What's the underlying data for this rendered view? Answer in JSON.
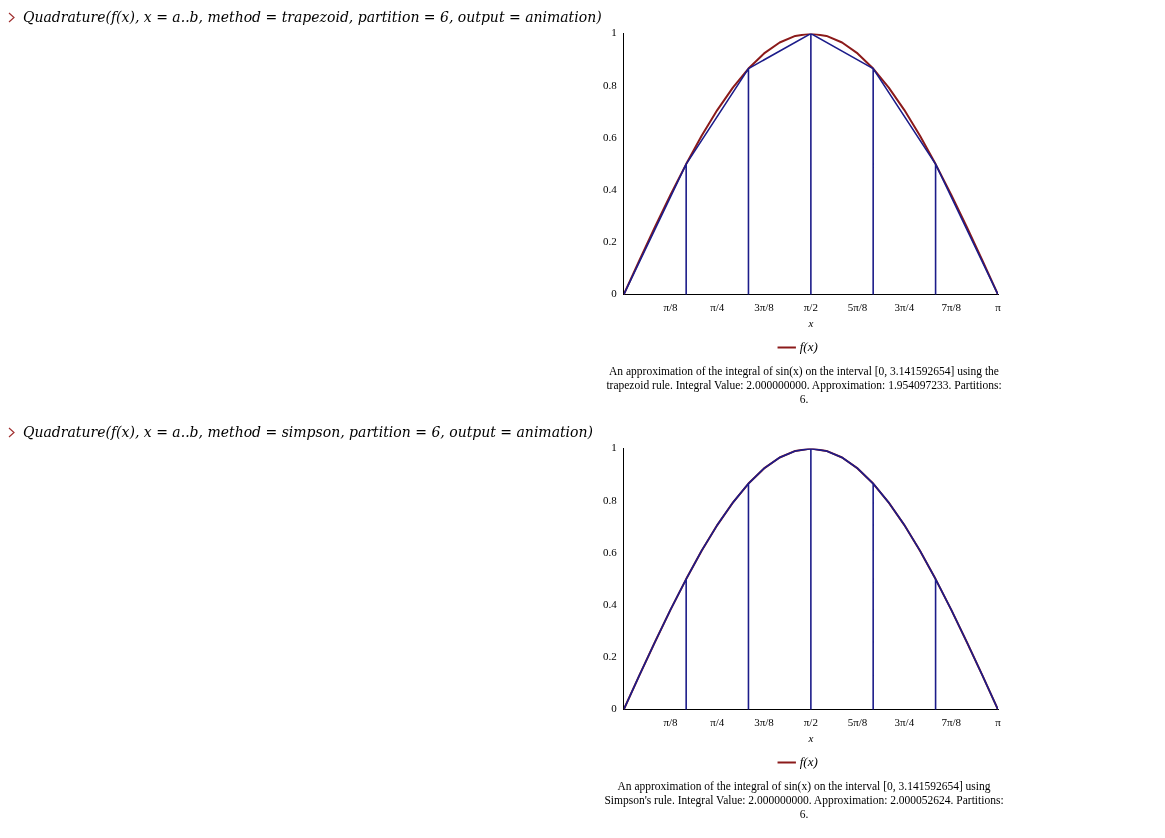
{
  "chart_data": [
    {
      "type": "line",
      "title": "Quadrature(f(x), x = a..b, method = trapezoid, partition = 6, output = animation)",
      "xlabel": "x",
      "xlim": [
        0,
        3.142
      ],
      "ylim": [
        0,
        1
      ],
      "yticks": [
        0,
        0.2,
        0.4,
        0.6,
        0.8,
        1
      ],
      "xticks": [
        {
          "value": 0.393,
          "label": "π/8"
        },
        {
          "value": 0.785,
          "label": "π/4"
        },
        {
          "value": 1.178,
          "label": "3π/8"
        },
        {
          "value": 1.571,
          "label": "π/2"
        },
        {
          "value": 1.963,
          "label": "5π/8"
        },
        {
          "value": 2.356,
          "label": "3π/4"
        },
        {
          "value": 2.749,
          "label": "7π/8"
        },
        {
          "value": 3.142,
          "label": "π"
        }
      ],
      "grid": false,
      "legend": "bottom",
      "marker": "none",
      "line_style": "solid",
      "series": [
        {
          "name": "f(x)",
          "color": "#8b1a1a",
          "x": [
            0,
            0.131,
            0.262,
            0.393,
            0.524,
            0.654,
            0.785,
            0.916,
            1.047,
            1.178,
            1.309,
            1.44,
            1.571,
            1.702,
            1.833,
            1.963,
            2.094,
            2.225,
            2.356,
            2.487,
            2.618,
            2.749,
            2.88,
            3.011,
            3.142
          ],
          "values": [
            0,
            0.131,
            0.259,
            0.383,
            0.5,
            0.609,
            0.707,
            0.793,
            0.866,
            0.924,
            0.966,
            0.991,
            1,
            0.991,
            0.966,
            0.924,
            0.866,
            0.793,
            0.707,
            0.609,
            0.5,
            0.383,
            0.259,
            0.131,
            0
          ]
        },
        {
          "color": "#1c1c8a",
          "x": [
            0,
            0.524,
            0.524,
            0.524,
            1.047,
            1.047,
            1.047,
            1.571,
            1.571,
            1.571,
            2.094,
            2.094,
            2.094,
            2.618,
            2.618,
            2.618,
            3.142
          ],
          "values": [
            0,
            0.5,
            0,
            0.5,
            0.866,
            0,
            0.866,
            1,
            0,
            1,
            0.866,
            0,
            0.866,
            0.5,
            0,
            0.5,
            0
          ]
        }
      ],
      "annotations": [
        "An approximation of the integral of sin(x) on the interval [0, 3.141592654] using the trapezoid rule. Integral Value: 2.000000000. Approximation: 1.954097233. Partitions: 6."
      ]
    },
    {
      "type": "line",
      "title": "Quadrature(f(x), x = a..b, method = simpson, partition = 6, output = animation)",
      "xlabel": "x",
      "xlim": [
        0,
        3.142
      ],
      "ylim": [
        0,
        1
      ],
      "yticks": [
        0,
        0.2,
        0.4,
        0.6,
        0.8,
        1
      ],
      "xticks": [
        {
          "value": 0.393,
          "label": "π/8"
        },
        {
          "value": 0.785,
          "label": "π/4"
        },
        {
          "value": 1.178,
          "label": "3π/8"
        },
        {
          "value": 1.571,
          "label": "π/2"
        },
        {
          "value": 1.963,
          "label": "5π/8"
        },
        {
          "value": 2.356,
          "label": "3π/4"
        },
        {
          "value": 2.749,
          "label": "7π/8"
        },
        {
          "value": 3.142,
          "label": "π"
        }
      ],
      "grid": false,
      "legend": "bottom",
      "marker": "none",
      "line_style": "solid",
      "series": [
        {
          "name": "f(x)",
          "color": "#8b1a1a",
          "x": [
            0,
            0.131,
            0.262,
            0.393,
            0.524,
            0.654,
            0.785,
            0.916,
            1.047,
            1.178,
            1.309,
            1.44,
            1.571,
            1.702,
            1.833,
            1.963,
            2.094,
            2.225,
            2.356,
            2.487,
            2.618,
            2.749,
            2.88,
            3.011,
            3.142
          ],
          "values": [
            0,
            0.131,
            0.259,
            0.383,
            0.5,
            0.609,
            0.707,
            0.793,
            0.866,
            0.924,
            0.966,
            0.991,
            1,
            0.991,
            0.966,
            0.924,
            0.866,
            0.793,
            0.707,
            0.609,
            0.5,
            0.383,
            0.259,
            0.131,
            0
          ]
        },
        {
          "color": "#1c1c8a",
          "x": [
            0,
            0.131,
            0.262,
            0.393,
            0.524,
            0.524,
            0.524,
            0.654,
            0.785,
            0.916,
            1.047,
            1.047,
            1.047,
            1.178,
            1.309,
            1.44,
            1.571,
            1.571,
            1.571,
            1.702,
            1.833,
            1.963,
            2.094,
            2.094,
            2.094,
            2.225,
            2.356,
            2.487,
            2.618,
            2.618,
            2.618,
            2.749,
            2.88,
            3.011,
            3.142
          ],
          "values": [
            0,
            0.131,
            0.259,
            0.383,
            0.5,
            0,
            0.5,
            0.609,
            0.707,
            0.793,
            0.866,
            0,
            0.866,
            0.924,
            0.966,
            0.991,
            1,
            0,
            1,
            0.991,
            0.966,
            0.924,
            0.866,
            0,
            0.866,
            0.793,
            0.707,
            0.609,
            0.5,
            0,
            0.5,
            0.383,
            0.259,
            0.131,
            0
          ]
        }
      ],
      "annotations": [
        "An approximation of the integral of sin(x) on the interval [0, 3.141592654] using Simpson's rule. Integral Value: 2.000000000. Approximation: 2.000052624. Partitions: 6."
      ]
    }
  ]
}
